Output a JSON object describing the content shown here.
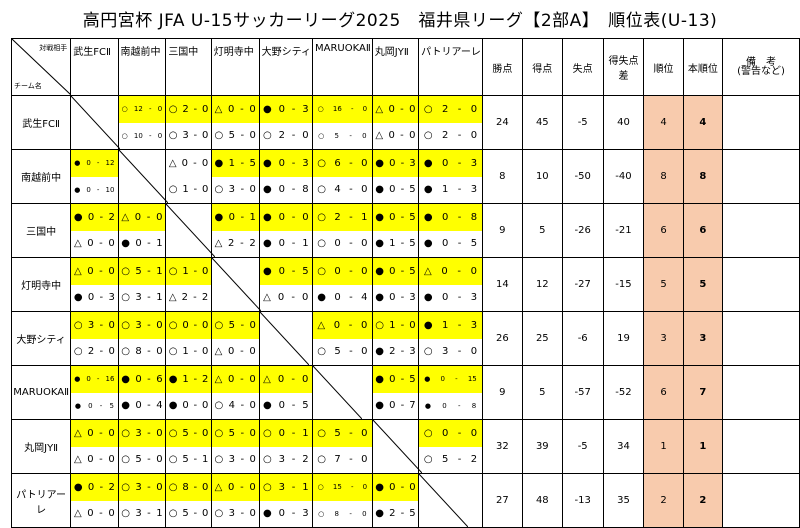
{
  "title": "高円宮杯 JFA U-15サッカーリーグ2025　福井県リーグ【2部A】　順位表(U-13)",
  "header": {
    "corner_top": "対戦相手",
    "corner_bottom": "チーム名",
    "stats": [
      "勝点",
      "得点",
      "失点",
      "得失点差",
      "順位",
      "本順位"
    ],
    "note_line1": "備　考",
    "note_line2": "(警告など)"
  },
  "teams": [
    "武生FCⅡ",
    "南越前中",
    "三国中",
    "灯明寺中",
    "大野シティ",
    "MARUOKAⅡ",
    "丸岡JYⅡ",
    "パトリアーレ"
  ],
  "highlight_color": "#ffff00",
  "rank_color": "#f8cbad",
  "results": [
    [
      null,
      {
        "top": [
          "○",
          "12",
          "-",
          "0"
        ],
        "bot": [
          "○",
          "10",
          "-",
          "0"
        ],
        "top_hl": true,
        "bot_hl": false,
        "small": true
      },
      {
        "top": [
          "○",
          "2",
          "-",
          "0"
        ],
        "bot": [
          "○",
          "3",
          "-",
          "0"
        ],
        "top_hl": true,
        "bot_hl": false
      },
      {
        "top": [
          "△",
          "0",
          "-",
          "0"
        ],
        "bot": [
          "○",
          "5",
          "-",
          "0"
        ],
        "top_hl": true,
        "bot_hl": false
      },
      {
        "top": [
          "●",
          "0",
          "-",
          "3"
        ],
        "bot": [
          "○",
          "2",
          "-",
          "0"
        ],
        "top_hl": true,
        "bot_hl": false
      },
      {
        "top": [
          "○",
          "16",
          "-",
          "0"
        ],
        "bot": [
          "○",
          "5",
          "-",
          "0"
        ],
        "top_hl": true,
        "bot_hl": false,
        "small": true
      },
      {
        "top": [
          "△",
          "0",
          "-",
          "0"
        ],
        "bot": [
          "△",
          "0",
          "-",
          "0"
        ],
        "top_hl": true,
        "bot_hl": false
      },
      {
        "top": [
          "○",
          "2",
          "-",
          "0"
        ],
        "bot": [
          "○",
          "2",
          "-",
          "0"
        ],
        "top_hl": true,
        "bot_hl": false
      }
    ],
    [
      {
        "top": [
          "●",
          "0",
          "-",
          "12"
        ],
        "bot": [
          "●",
          "0",
          "-",
          "10"
        ],
        "top_hl": true,
        "bot_hl": false,
        "small": true
      },
      null,
      {
        "top": [
          "△",
          "0",
          "-",
          "0"
        ],
        "bot": [
          "○",
          "1",
          "-",
          "0"
        ],
        "top_hl": false,
        "bot_hl": false
      },
      {
        "top": [
          "●",
          "1",
          "-",
          "5"
        ],
        "bot": [
          "○",
          "3",
          "-",
          "0"
        ],
        "top_hl": true,
        "bot_hl": false
      },
      {
        "top": [
          "●",
          "0",
          "-",
          "3"
        ],
        "bot": [
          "●",
          "0",
          "-",
          "8"
        ],
        "top_hl": true,
        "bot_hl": false
      },
      {
        "top": [
          "○",
          "6",
          "-",
          "0"
        ],
        "bot": [
          "○",
          "4",
          "-",
          "0"
        ],
        "top_hl": true,
        "bot_hl": false
      },
      {
        "top": [
          "●",
          "0",
          "-",
          "3"
        ],
        "bot": [
          "●",
          "0",
          "-",
          "5"
        ],
        "top_hl": true,
        "bot_hl": false
      },
      {
        "top": [
          "●",
          "0",
          "-",
          "3"
        ],
        "bot": [
          "●",
          "1",
          "-",
          "3"
        ],
        "top_hl": true,
        "bot_hl": false
      }
    ],
    [
      {
        "top": [
          "●",
          "0",
          "-",
          "2"
        ],
        "bot": [
          "△",
          "0",
          "-",
          "0"
        ],
        "top_hl": true,
        "bot_hl": false
      },
      {
        "top": [
          "△",
          "0",
          "-",
          "0"
        ],
        "bot": [
          "●",
          "0",
          "-",
          "1"
        ],
        "top_hl": true,
        "bot_hl": false
      },
      null,
      {
        "top": [
          "●",
          "0",
          "-",
          "1"
        ],
        "bot": [
          "△",
          "2",
          "-",
          "2"
        ],
        "top_hl": true,
        "bot_hl": false
      },
      {
        "top": [
          "●",
          "0",
          "-",
          "0"
        ],
        "bot": [
          "●",
          "0",
          "-",
          "1"
        ],
        "top_hl": true,
        "bot_hl": false
      },
      {
        "top": [
          "○",
          "2",
          "-",
          "1"
        ],
        "bot": [
          "○",
          "0",
          "-",
          "0"
        ],
        "top_hl": true,
        "bot_hl": false
      },
      {
        "top": [
          "●",
          "0",
          "-",
          "5"
        ],
        "bot": [
          "●",
          "1",
          "-",
          "5"
        ],
        "top_hl": true,
        "bot_hl": false
      },
      {
        "top": [
          "●",
          "0",
          "-",
          "8"
        ],
        "bot": [
          "●",
          "0",
          "-",
          "5"
        ],
        "top_hl": true,
        "bot_hl": false
      }
    ],
    [
      {
        "top": [
          "△",
          "0",
          "-",
          "0"
        ],
        "bot": [
          "●",
          "0",
          "-",
          "3"
        ],
        "top_hl": true,
        "bot_hl": false
      },
      {
        "top": [
          "○",
          "5",
          "-",
          "1"
        ],
        "bot": [
          "○",
          "3",
          "-",
          "1"
        ],
        "top_hl": true,
        "bot_hl": false
      },
      {
        "top": [
          "○",
          "1",
          "-",
          "0"
        ],
        "bot": [
          "△",
          "2",
          "-",
          "2"
        ],
        "top_hl": true,
        "bot_hl": false
      },
      null,
      {
        "top": [
          "●",
          "0",
          "-",
          "5"
        ],
        "bot": [
          "△",
          "0",
          "-",
          "0"
        ],
        "top_hl": true,
        "bot_hl": false
      },
      {
        "top": [
          "○",
          "0",
          "-",
          "0"
        ],
        "bot": [
          "●",
          "0",
          "-",
          "4"
        ],
        "top_hl": true,
        "bot_hl": false
      },
      {
        "top": [
          "●",
          "0",
          "-",
          "5"
        ],
        "bot": [
          "●",
          "0",
          "-",
          "3"
        ],
        "top_hl": true,
        "bot_hl": false
      },
      {
        "top": [
          "△",
          "0",
          "-",
          "0"
        ],
        "bot": [
          "●",
          "0",
          "-",
          "3"
        ],
        "top_hl": true,
        "bot_hl": false
      }
    ],
    [
      {
        "top": [
          "○",
          "3",
          "-",
          "0"
        ],
        "bot": [
          "○",
          "2",
          "-",
          "0"
        ],
        "top_hl": true,
        "bot_hl": false
      },
      {
        "top": [
          "○",
          "3",
          "-",
          "0"
        ],
        "bot": [
          "○",
          "8",
          "-",
          "0"
        ],
        "top_hl": true,
        "bot_hl": false
      },
      {
        "top": [
          "○",
          "0",
          "-",
          "0"
        ],
        "bot": [
          "○",
          "1",
          "-",
          "0"
        ],
        "top_hl": true,
        "bot_hl": false
      },
      {
        "top": [
          "○",
          "5",
          "-",
          "0"
        ],
        "bot": [
          "△",
          "0",
          "-",
          "0"
        ],
        "top_hl": true,
        "bot_hl": false
      },
      null,
      {
        "top": [
          "△",
          "0",
          "-",
          "0"
        ],
        "bot": [
          "○",
          "5",
          "-",
          "0"
        ],
        "top_hl": true,
        "bot_hl": false
      },
      {
        "top": [
          "○",
          "1",
          "-",
          "0"
        ],
        "bot": [
          "●",
          "2",
          "-",
          "3"
        ],
        "top_hl": true,
        "bot_hl": false
      },
      {
        "top": [
          "●",
          "1",
          "-",
          "3"
        ],
        "bot": [
          "○",
          "3",
          "-",
          "0"
        ],
        "top_hl": true,
        "bot_hl": false
      }
    ],
    [
      {
        "top": [
          "●",
          "0",
          "-",
          "16"
        ],
        "bot": [
          "●",
          "0",
          "-",
          "5"
        ],
        "top_hl": true,
        "bot_hl": false,
        "small": true
      },
      {
        "top": [
          "●",
          "0",
          "-",
          "6"
        ],
        "bot": [
          "●",
          "0",
          "-",
          "4"
        ],
        "top_hl": true,
        "bot_hl": false
      },
      {
        "top": [
          "●",
          "1",
          "-",
          "2"
        ],
        "bot": [
          "●",
          "0",
          "-",
          "0"
        ],
        "top_hl": true,
        "bot_hl": false
      },
      {
        "top": [
          "△",
          "0",
          "-",
          "0"
        ],
        "bot": [
          "○",
          "4",
          "-",
          "0"
        ],
        "top_hl": true,
        "bot_hl": false
      },
      {
        "top": [
          "△",
          "0",
          "-",
          "0"
        ],
        "bot": [
          "●",
          "0",
          "-",
          "5"
        ],
        "top_hl": true,
        "bot_hl": false
      },
      null,
      {
        "top": [
          "●",
          "0",
          "-",
          "5"
        ],
        "bot": [
          "●",
          "0",
          "-",
          "7"
        ],
        "top_hl": true,
        "bot_hl": false
      },
      {
        "top": [
          "●",
          "0",
          "-",
          "15"
        ],
        "bot": [
          "●",
          "0",
          "-",
          "8"
        ],
        "top_hl": true,
        "bot_hl": false,
        "small": true
      }
    ],
    [
      {
        "top": [
          "△",
          "0",
          "-",
          "0"
        ],
        "bot": [
          "△",
          "0",
          "-",
          "0"
        ],
        "top_hl": true,
        "bot_hl": false
      },
      {
        "top": [
          "○",
          "3",
          "-",
          "0"
        ],
        "bot": [
          "○",
          "5",
          "-",
          "0"
        ],
        "top_hl": true,
        "bot_hl": false
      },
      {
        "top": [
          "○",
          "5",
          "-",
          "0"
        ],
        "bot": [
          "○",
          "5",
          "-",
          "1"
        ],
        "top_hl": true,
        "bot_hl": false
      },
      {
        "top": [
          "○",
          "5",
          "-",
          "0"
        ],
        "bot": [
          "○",
          "3",
          "-",
          "0"
        ],
        "top_hl": true,
        "bot_hl": false
      },
      {
        "top": [
          "○",
          "0",
          "-",
          "1"
        ],
        "bot": [
          "○",
          "3",
          "-",
          "2"
        ],
        "top_hl": true,
        "bot_hl": false
      },
      {
        "top": [
          "○",
          "5",
          "-",
          "0"
        ],
        "bot": [
          "○",
          "7",
          "-",
          "0"
        ],
        "top_hl": true,
        "bot_hl": false
      },
      null,
      {
        "top": [
          "○",
          "0",
          "-",
          "0"
        ],
        "bot": [
          "○",
          "5",
          "-",
          "2"
        ],
        "top_hl": true,
        "bot_hl": false
      }
    ],
    [
      {
        "top": [
          "●",
          "0",
          "-",
          "2"
        ],
        "bot": [
          "△",
          "0",
          "-",
          "0"
        ],
        "top_hl": true,
        "bot_hl": false
      },
      {
        "top": [
          "○",
          "3",
          "-",
          "0"
        ],
        "bot": [
          "○",
          "3",
          "-",
          "1"
        ],
        "top_hl": true,
        "bot_hl": false
      },
      {
        "top": [
          "○",
          "8",
          "-",
          "0"
        ],
        "bot": [
          "○",
          "5",
          "-",
          "0"
        ],
        "top_hl": true,
        "bot_hl": false
      },
      {
        "top": [
          "△",
          "0",
          "-",
          "0"
        ],
        "bot": [
          "○",
          "3",
          "-",
          "0"
        ],
        "top_hl": true,
        "bot_hl": false
      },
      {
        "top": [
          "○",
          "3",
          "-",
          "1"
        ],
        "bot": [
          "●",
          "0",
          "-",
          "3"
        ],
        "top_hl": true,
        "bot_hl": false
      },
      {
        "top": [
          "○",
          "15",
          "-",
          "0"
        ],
        "bot": [
          "○",
          "8",
          "-",
          "0"
        ],
        "top_hl": true,
        "bot_hl": false,
        "small": true
      },
      {
        "top": [
          "●",
          "0",
          "-",
          "0"
        ],
        "bot": [
          "●",
          "2",
          "-",
          "5"
        ],
        "top_hl": true,
        "bot_hl": false
      },
      null
    ]
  ],
  "standings": [
    {
      "points": "24",
      "gf": "45",
      "ga": "-5",
      "gd": "40",
      "rank": "4",
      "final": "4"
    },
    {
      "points": "8",
      "gf": "10",
      "ga": "-50",
      "gd": "-40",
      "rank": "8",
      "final": "8"
    },
    {
      "points": "9",
      "gf": "5",
      "ga": "-26",
      "gd": "-21",
      "rank": "6",
      "final": "6"
    },
    {
      "points": "14",
      "gf": "12",
      "ga": "-27",
      "gd": "-15",
      "rank": "5",
      "final": "5"
    },
    {
      "points": "26",
      "gf": "25",
      "ga": "-6",
      "gd": "19",
      "rank": "3",
      "final": "3"
    },
    {
      "points": "9",
      "gf": "5",
      "ga": "-57",
      "gd": "-52",
      "rank": "6",
      "final": "7"
    },
    {
      "points": "32",
      "gf": "39",
      "ga": "-5",
      "gd": "34",
      "rank": "1",
      "final": "1"
    },
    {
      "points": "27",
      "gf": "48",
      "ga": "-13",
      "gd": "35",
      "rank": "2",
      "final": "2"
    }
  ]
}
